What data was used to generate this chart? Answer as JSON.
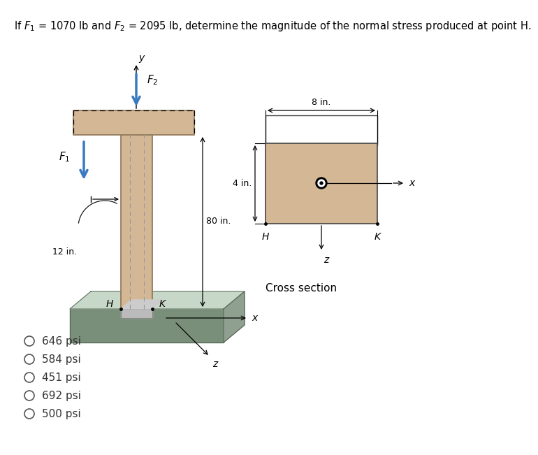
{
  "title": "If $F_1$ = 1070 lb and $F_2$ = 2095 lb, determine the magnitude of the normal stress produced at point H.",
  "title_fontsize": 10.5,
  "bg_color": "#ffffff",
  "beam_color": "#d4b896",
  "beam_edge": "#8B7355",
  "base_dark": "#7a8f7a",
  "base_light": "#b8c8b8",
  "base_lighter": "#c8d8c8",
  "options": [
    "646 psi",
    "584 psi",
    "451 psi",
    "692 psi",
    "500 psi"
  ],
  "dim_80": "80 in.",
  "dim_12": "12 in.",
  "dim_8": "8 in.",
  "dim_4": "4 in.",
  "cross_label": "Cross section",
  "label_H_beam": "H",
  "label_K_beam": "K",
  "label_H_cs": "H",
  "label_K_cs": "K",
  "label_F1": "$F_1$",
  "label_F2": "$F_2$",
  "label_x_base": "x",
  "label_x_cs": "x",
  "label_y": "y",
  "label_z_base": "z",
  "label_z_cs": "z",
  "arrow_color": "#3a7abf",
  "arrow_lw": 2.5
}
